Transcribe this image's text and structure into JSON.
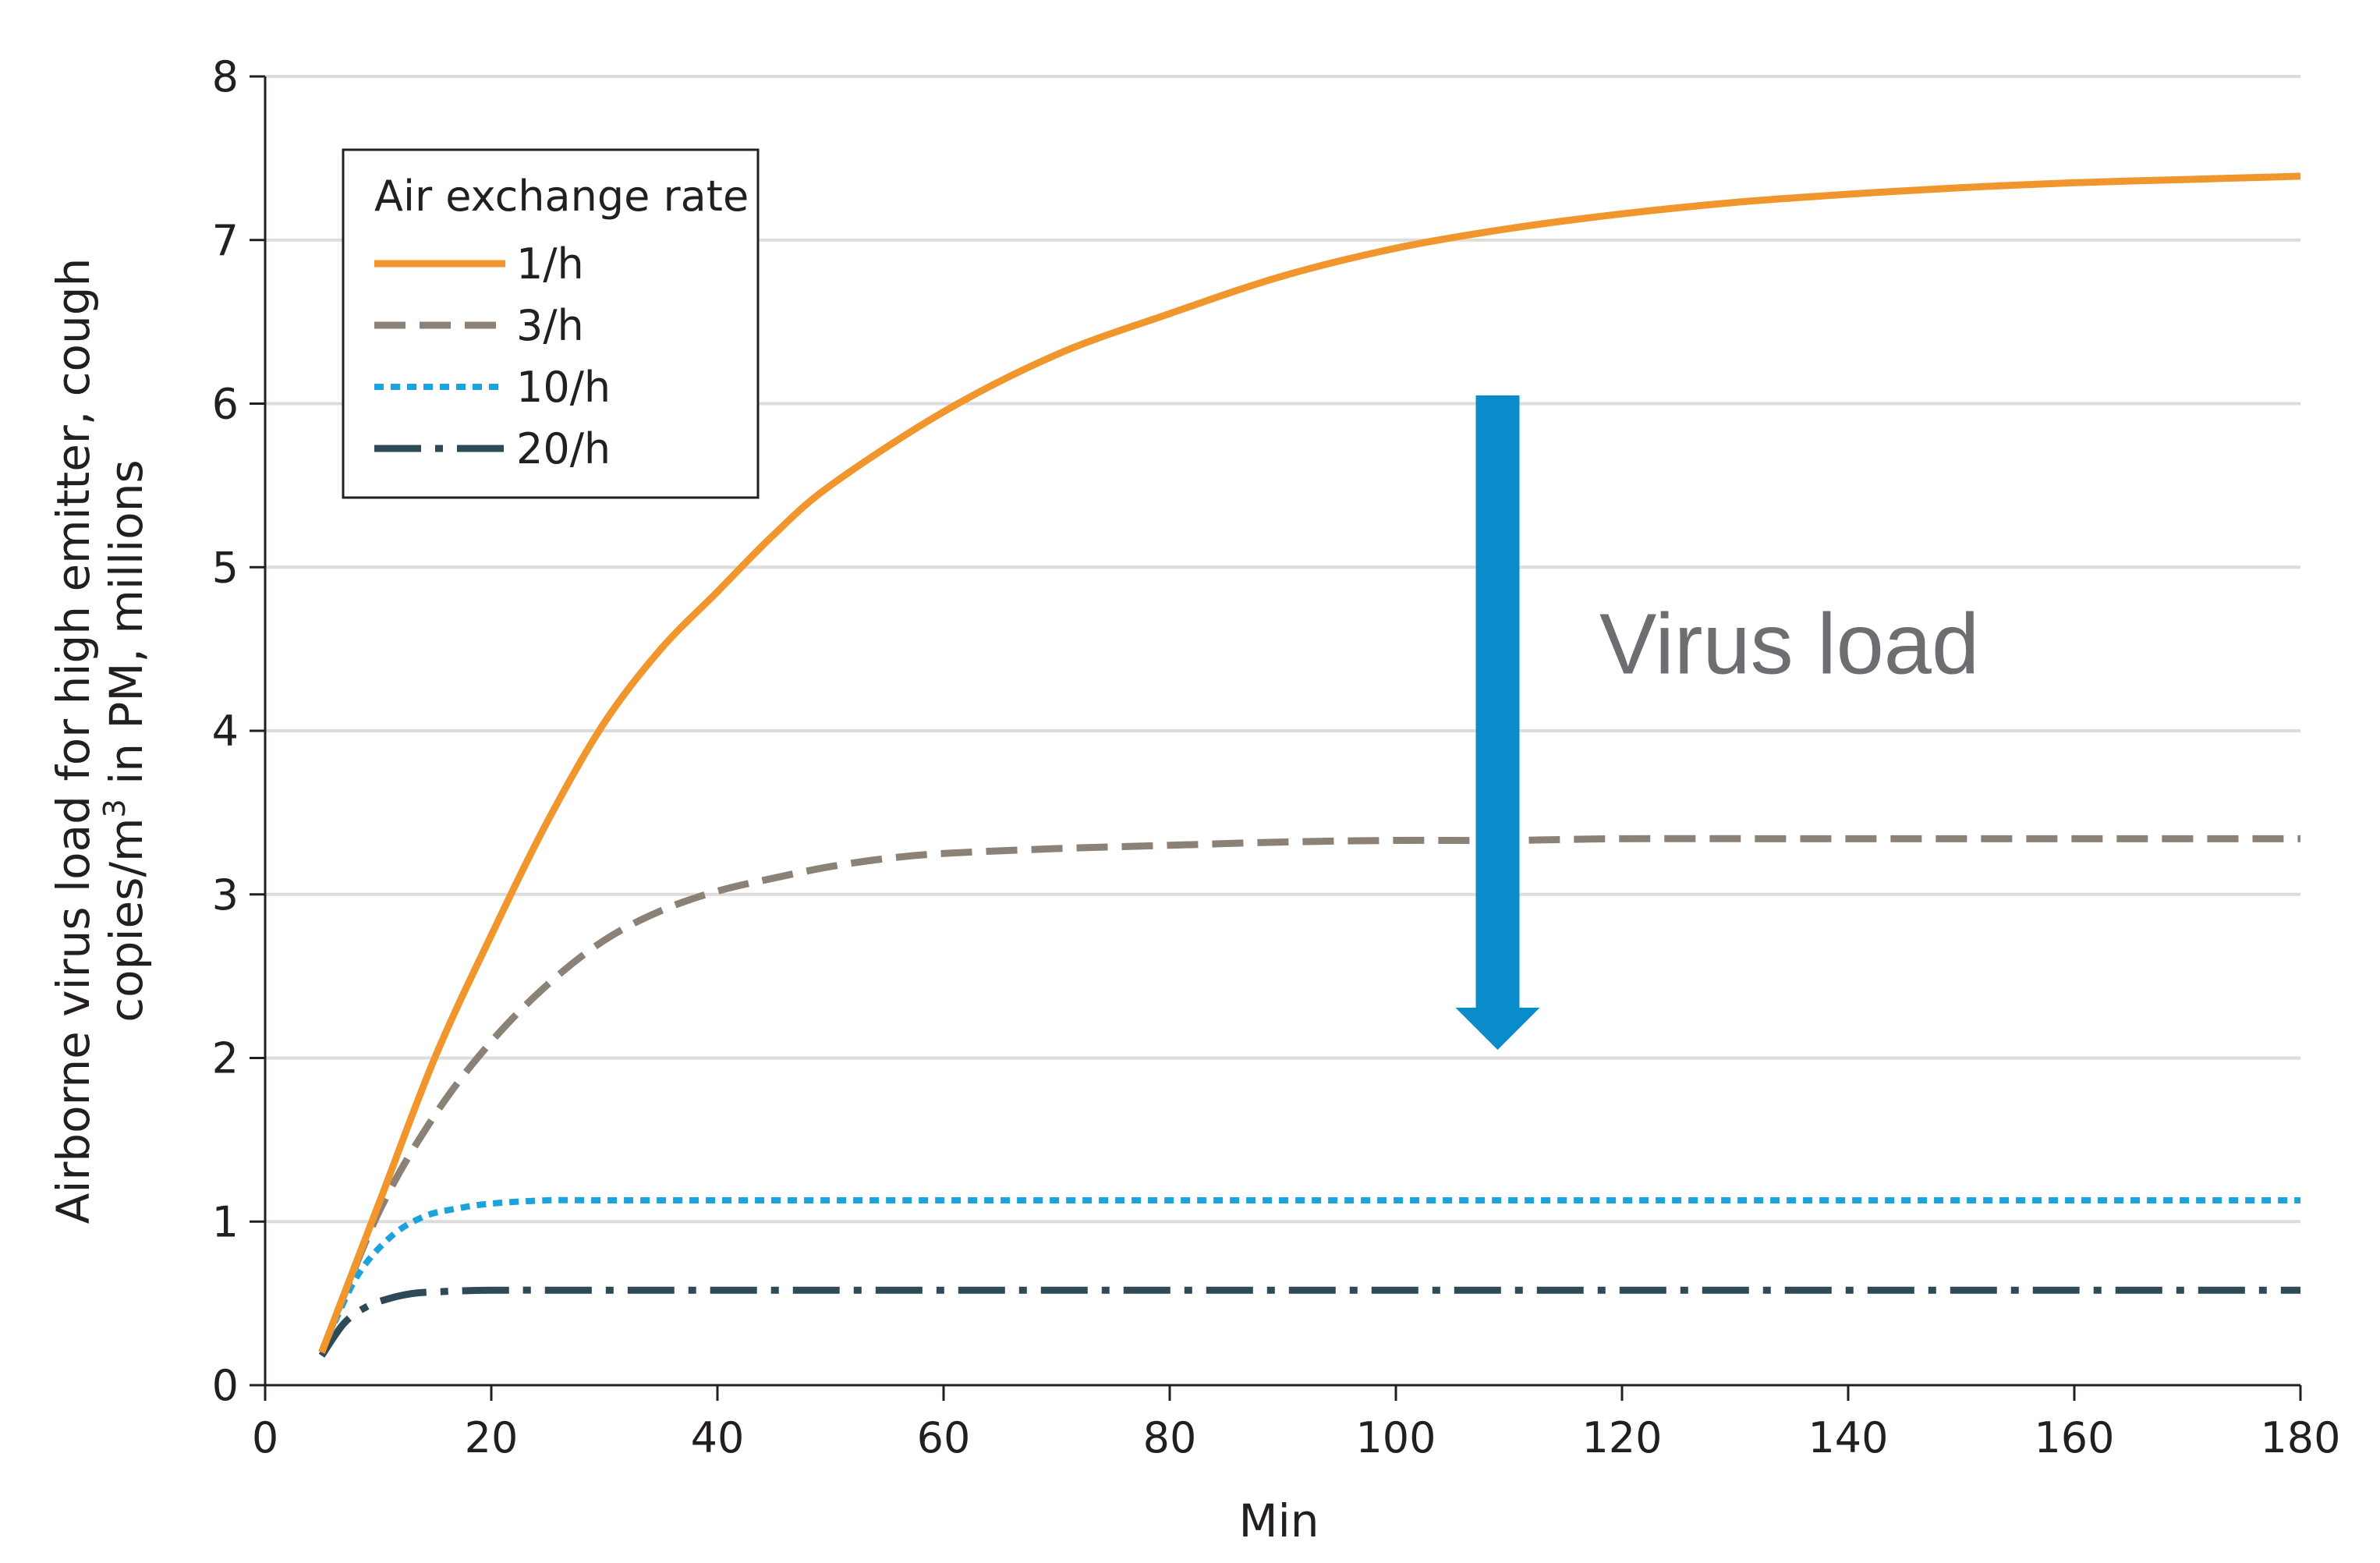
{
  "chart_data": {
    "type": "line",
    "xlabel": "Min",
    "ylabel_line1": "Airborne virus load for high emitter, cough",
    "ylabel_line2_prefix": "copies/m",
    "ylabel_line2_sup": "3",
    "ylabel_line2_suffix": " in PM, millions",
    "xlim": [
      0,
      180
    ],
    "ylim": [
      0,
      8
    ],
    "x_ticks": [
      0,
      20,
      40,
      60,
      80,
      100,
      120,
      140,
      160,
      180
    ],
    "x_tick_labels": [
      "0",
      "20",
      "40",
      "60",
      "80",
      "100",
      "120",
      "140",
      "160",
      "180"
    ],
    "y_ticks": [
      0,
      1,
      2,
      3,
      4,
      5,
      6,
      7,
      8
    ],
    "y_tick_labels": [
      "0",
      "1",
      "2",
      "3",
      "4",
      "5",
      "6",
      "7",
      "8"
    ],
    "grid": "horizontal",
    "legend": {
      "title": "Air exchange rate",
      "placement": "top-left"
    },
    "series": [
      {
        "name": "1/h",
        "color": "#f0962d",
        "style": "solid",
        "x": [
          5,
          10,
          15,
          20,
          25,
          30,
          35,
          40,
          45,
          50,
          60,
          70,
          80,
          90,
          100,
          110,
          120,
          130,
          140,
          150,
          160,
          170,
          180
        ],
        "y": [
          0.2,
          1.1,
          2.0,
          2.75,
          3.45,
          4.05,
          4.5,
          4.85,
          5.2,
          5.5,
          5.95,
          6.3,
          6.55,
          6.78,
          6.95,
          7.07,
          7.16,
          7.23,
          7.28,
          7.32,
          7.35,
          7.37,
          7.39
        ]
      },
      {
        "name": "3/h",
        "color": "#8c8176",
        "style": "dashed",
        "x": [
          5,
          10,
          15,
          20,
          25,
          30,
          35,
          40,
          45,
          50,
          55,
          60,
          70,
          80,
          90,
          100,
          110,
          120,
          140,
          160,
          180
        ],
        "y": [
          0.2,
          1.05,
          1.65,
          2.1,
          2.45,
          2.72,
          2.9,
          3.02,
          3.1,
          3.17,
          3.22,
          3.25,
          3.28,
          3.3,
          3.32,
          3.33,
          3.33,
          3.34,
          3.34,
          3.34,
          3.34
        ]
      },
      {
        "name": "10/h",
        "color": "#1aa3dc",
        "style": "dotted",
        "x": [
          5,
          8,
          11,
          14,
          17,
          20,
          25,
          30,
          40,
          60,
          80,
          100,
          120,
          140,
          160,
          180
        ],
        "y": [
          0.2,
          0.65,
          0.9,
          1.03,
          1.08,
          1.11,
          1.13,
          1.13,
          1.13,
          1.13,
          1.13,
          1.13,
          1.13,
          1.13,
          1.13,
          1.13
        ]
      },
      {
        "name": "20/h",
        "color": "#2e4a57",
        "style": "dash-dot",
        "x": [
          5,
          7,
          9,
          11,
          13,
          15,
          20,
          30,
          40,
          60,
          80,
          100,
          120,
          140,
          160,
          180
        ],
        "y": [
          0.18,
          0.38,
          0.48,
          0.53,
          0.56,
          0.57,
          0.58,
          0.58,
          0.58,
          0.58,
          0.58,
          0.58,
          0.58,
          0.58,
          0.58,
          0.58
        ]
      }
    ],
    "annotations": [
      {
        "text": "Virus load",
        "arrow": {
          "x": 109,
          "from_y": 6.05,
          "to_y": 2.05,
          "color": "#0a8ccc"
        },
        "text_x": 118,
        "text_y": 4.35
      }
    ],
    "colors": {
      "axis": "#231f20",
      "grid": "#dcdcdc"
    }
  }
}
